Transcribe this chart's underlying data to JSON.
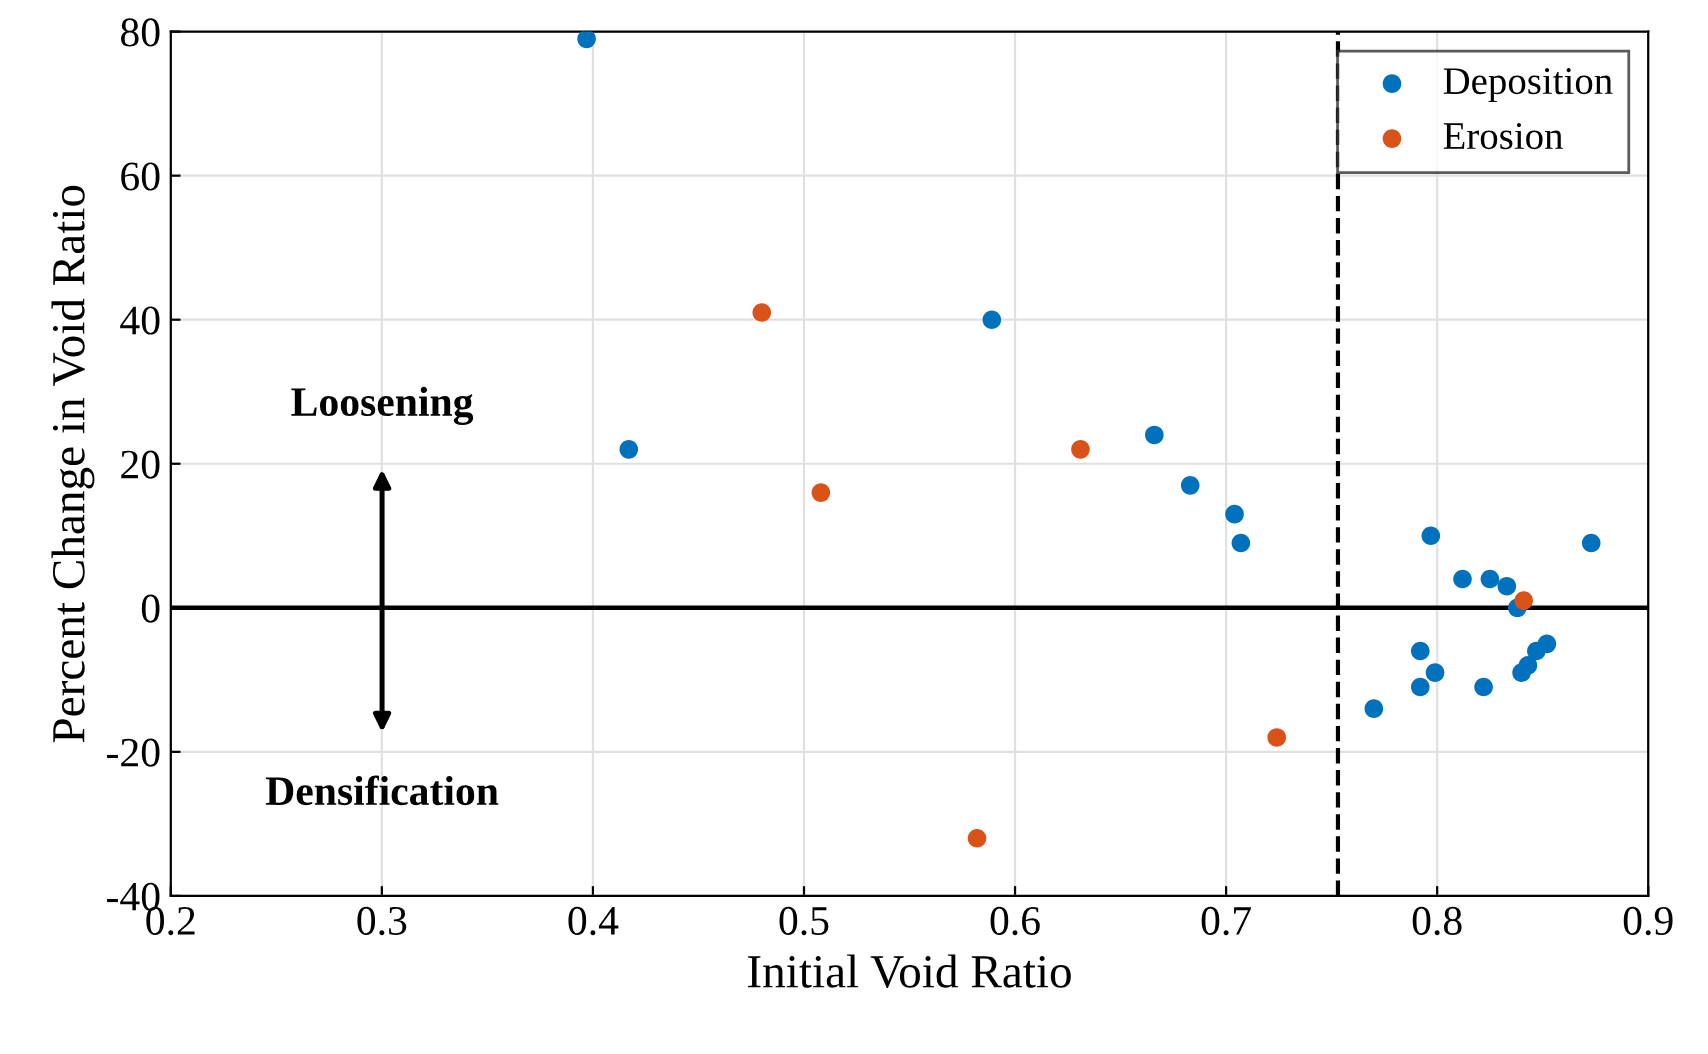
{
  "chart_data": {
    "type": "scatter",
    "xlabel": "Initial Void Ratio",
    "ylabel": "Percent Change in Void Ratio",
    "xlim": [
      0.2,
      0.9
    ],
    "xticks": [
      0.2,
      0.3,
      0.4,
      0.5,
      0.6,
      0.7,
      0.8,
      0.9
    ],
    "ylim": [
      -40,
      80
    ],
    "yticks": [
      -40,
      -20,
      0,
      20,
      40,
      60,
      80
    ],
    "grid": true,
    "legend": "top right",
    "marker": "circle",
    "series": [
      {
        "name": "Deposition",
        "color": "#0072bd",
        "x": [
          0.397,
          0.417,
          0.589,
          0.666,
          0.683,
          0.704,
          0.707,
          0.77,
          0.792,
          0.792,
          0.797,
          0.799,
          0.812,
          0.822,
          0.825,
          0.833,
          0.838,
          0.84,
          0.843,
          0.847,
          0.852,
          0.873
        ],
        "values": [
          79,
          22,
          40,
          24,
          17,
          13,
          9,
          -14,
          -6,
          -11,
          10,
          -9,
          4,
          -11,
          4,
          3,
          0,
          -9,
          -8,
          -6,
          -5,
          9
        ]
      },
      {
        "name": "Erosion",
        "color": "#d95319",
        "x": [
          0.48,
          0.508,
          0.582,
          0.631,
          0.724,
          0.841
        ],
        "values": [
          41,
          16,
          -32,
          22,
          -18,
          1
        ]
      }
    ],
    "ref_lines": [
      {
        "axis": "y",
        "value": 0,
        "color": "#000000",
        "line_style": "solid"
      },
      {
        "axis": "x",
        "value": 0.753,
        "color": "#000000",
        "line_style": "dashed"
      }
    ],
    "annotations": [
      "Loosening",
      "Densification"
    ]
  }
}
